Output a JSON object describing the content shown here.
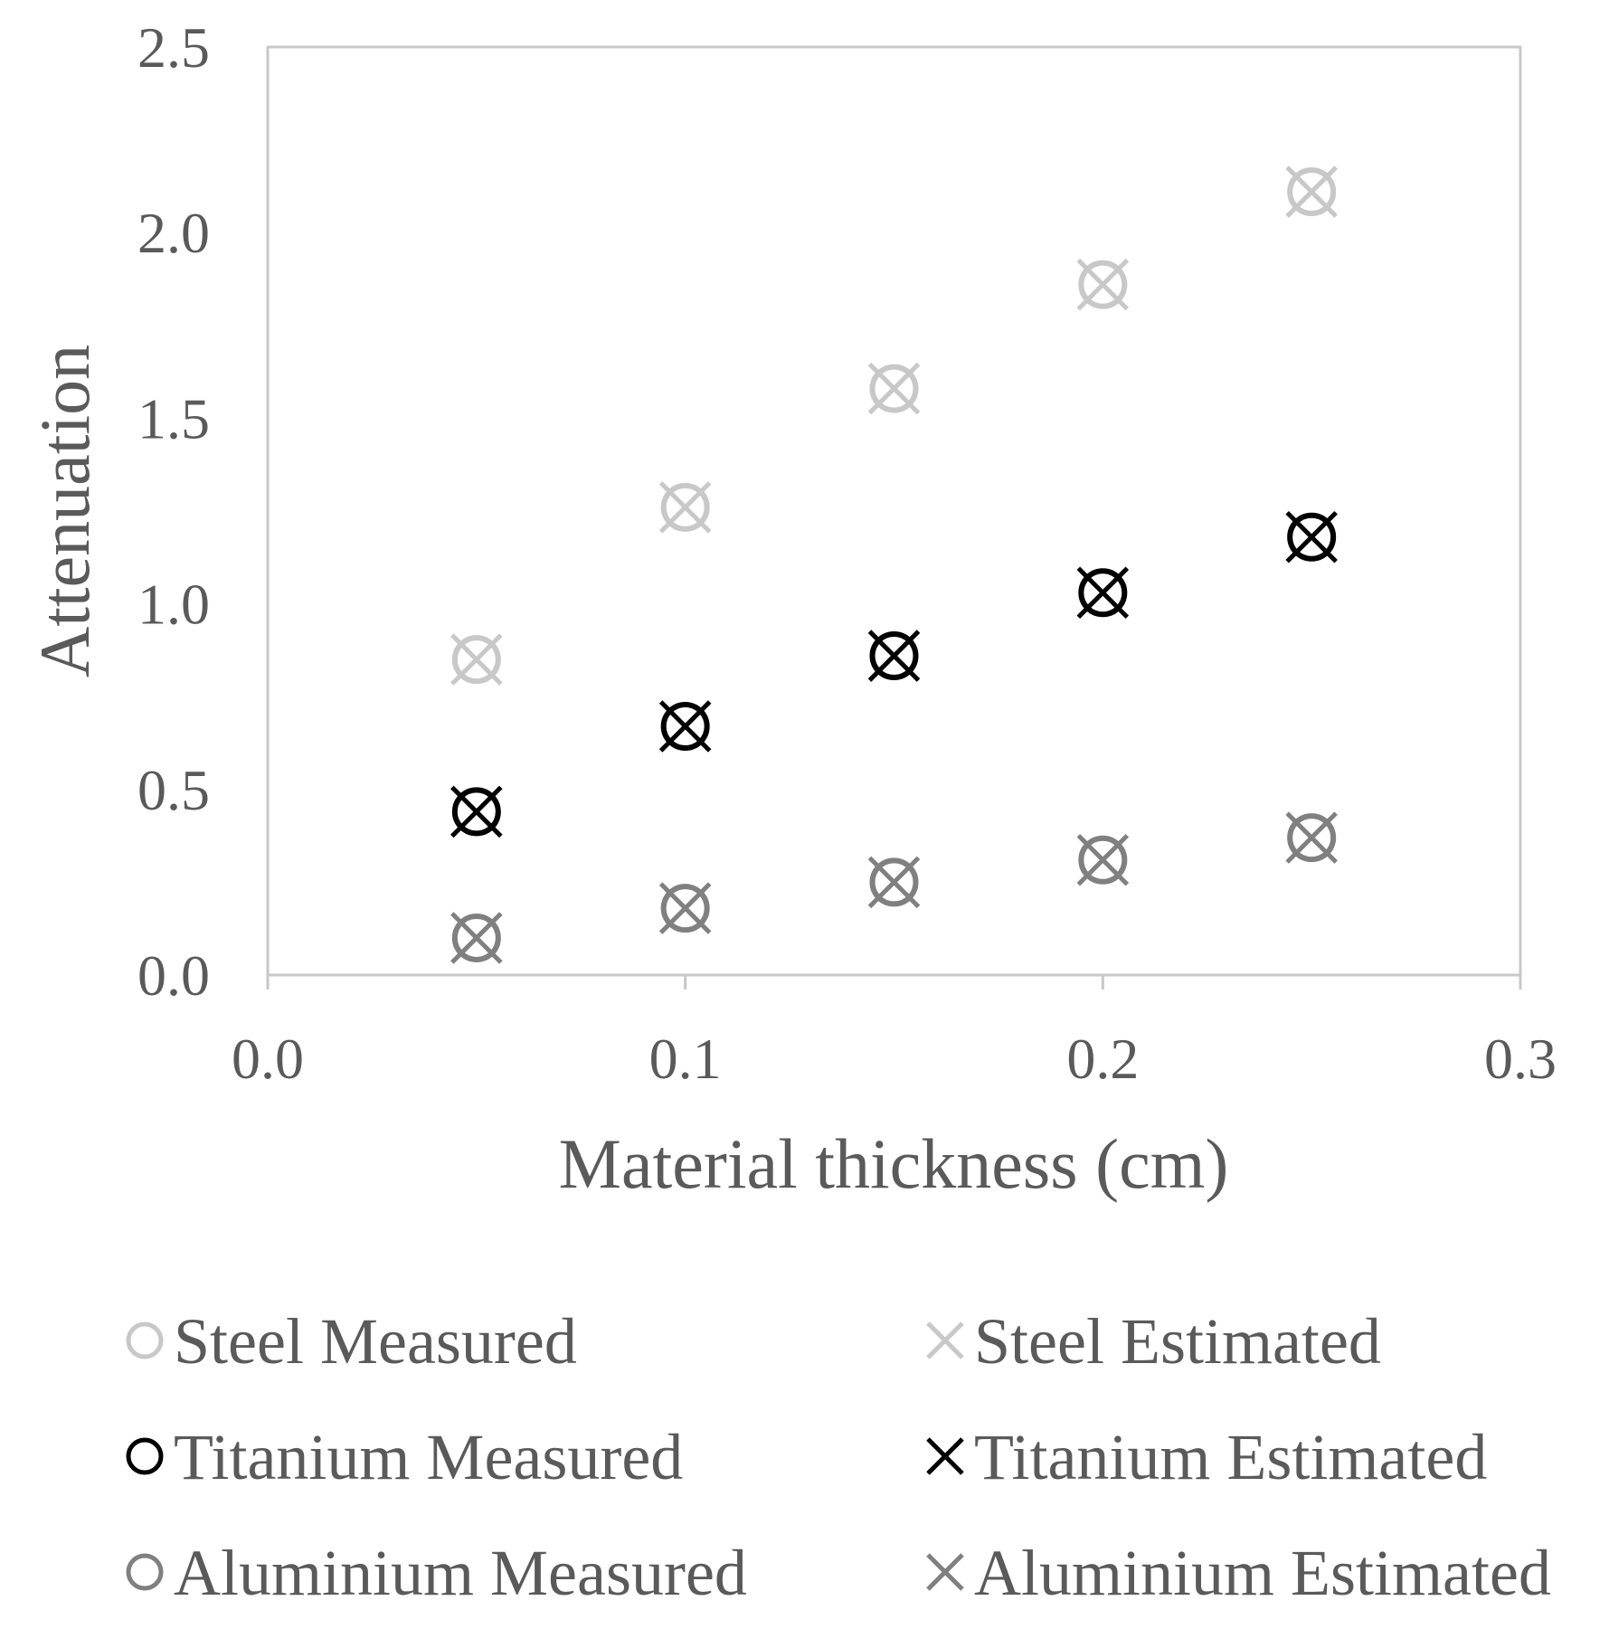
{
  "chart_data": {
    "type": "scatter",
    "title": "",
    "xlabel": "Material thickness (cm)",
    "ylabel": "Attenuation",
    "xlim": [
      0.0,
      0.3
    ],
    "ylim": [
      0.0,
      2.5
    ],
    "xticks": [
      0.0,
      0.1,
      0.2,
      0.3
    ],
    "xtick_labels": [
      "0.0",
      "0.1",
      "0.2",
      "0.3"
    ],
    "yticks": [
      0.0,
      0.5,
      1.0,
      1.5,
      2.0,
      2.5
    ],
    "ytick_labels": [
      "0.0",
      "0.5",
      "1.0",
      "1.5",
      "2.0",
      "2.5"
    ],
    "grid": false,
    "legend_position": "bottom",
    "series": [
      {
        "name": "Steel Measured",
        "marker": "circle",
        "color": "#c8c8c8",
        "x": [
          0.05,
          0.1,
          0.15,
          0.2,
          0.25
        ],
        "y": [
          0.85,
          1.26,
          1.58,
          1.86,
          2.11
        ]
      },
      {
        "name": "Steel Estimated",
        "marker": "x",
        "color": "#c8c8c8",
        "x": [
          0.05,
          0.1,
          0.15,
          0.2,
          0.25
        ],
        "y": [
          0.85,
          1.26,
          1.58,
          1.86,
          2.11
        ]
      },
      {
        "name": "Titanium Measured",
        "marker": "circle",
        "color": "#000000",
        "x": [
          0.05,
          0.1,
          0.15,
          0.2,
          0.25
        ],
        "y": [
          0.44,
          0.67,
          0.86,
          1.03,
          1.18
        ]
      },
      {
        "name": "Titanium Estimated",
        "marker": "x",
        "color": "#000000",
        "x": [
          0.05,
          0.1,
          0.15,
          0.2,
          0.25
        ],
        "y": [
          0.44,
          0.67,
          0.86,
          1.03,
          1.18
        ]
      },
      {
        "name": "Aluminium Measured",
        "marker": "circle",
        "color": "#808080",
        "x": [
          0.05,
          0.1,
          0.15,
          0.2,
          0.25
        ],
        "y": [
          0.1,
          0.18,
          0.25,
          0.31,
          0.37
        ]
      },
      {
        "name": "Aluminium Estimated",
        "marker": "x",
        "color": "#808080",
        "x": [
          0.05,
          0.1,
          0.15,
          0.2,
          0.25
        ],
        "y": [
          0.1,
          0.18,
          0.25,
          0.31,
          0.37
        ]
      }
    ]
  }
}
